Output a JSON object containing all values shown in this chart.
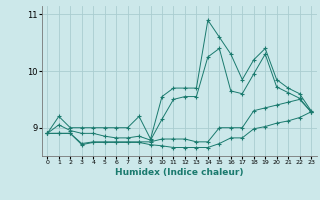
{
  "xlabel": "Humidex (Indice chaleur)",
  "background_color": "#cce8ea",
  "grid_color": "#aacdd0",
  "line_color": "#1a7a6e",
  "hours": [
    0,
    1,
    2,
    3,
    4,
    5,
    6,
    7,
    8,
    9,
    10,
    11,
    12,
    13,
    14,
    15,
    16,
    17,
    18,
    19,
    20,
    21,
    22,
    23
  ],
  "line_max": [
    8.9,
    9.2,
    9.0,
    9.0,
    9.0,
    9.0,
    9.0,
    9.0,
    9.2,
    8.8,
    9.55,
    9.7,
    9.7,
    9.7,
    10.9,
    10.6,
    10.3,
    9.85,
    10.2,
    10.4,
    9.85,
    9.7,
    9.6,
    9.3
  ],
  "line_mean": [
    8.9,
    9.05,
    8.95,
    8.9,
    8.9,
    8.85,
    8.82,
    8.82,
    8.85,
    8.78,
    9.15,
    9.5,
    9.55,
    9.55,
    10.25,
    10.4,
    9.65,
    9.6,
    9.95,
    10.3,
    9.72,
    9.62,
    9.52,
    9.28
  ],
  "line_min": [
    8.9,
    8.9,
    8.9,
    8.72,
    8.75,
    8.75,
    8.75,
    8.75,
    8.75,
    8.75,
    8.8,
    8.8,
    8.8,
    8.75,
    8.75,
    9.0,
    9.0,
    9.0,
    9.3,
    9.35,
    9.4,
    9.45,
    9.5,
    9.28
  ],
  "line_extra": [
    8.9,
    8.9,
    8.9,
    8.7,
    8.74,
    8.74,
    8.74,
    8.74,
    8.74,
    8.7,
    8.68,
    8.65,
    8.65,
    8.65,
    8.65,
    8.72,
    8.82,
    8.82,
    8.98,
    9.02,
    9.08,
    9.12,
    9.18,
    9.28
  ],
  "ylim": [
    8.5,
    11.15
  ],
  "yticks": [
    9,
    10,
    11
  ],
  "xlim": [
    -0.5,
    23.5
  ]
}
